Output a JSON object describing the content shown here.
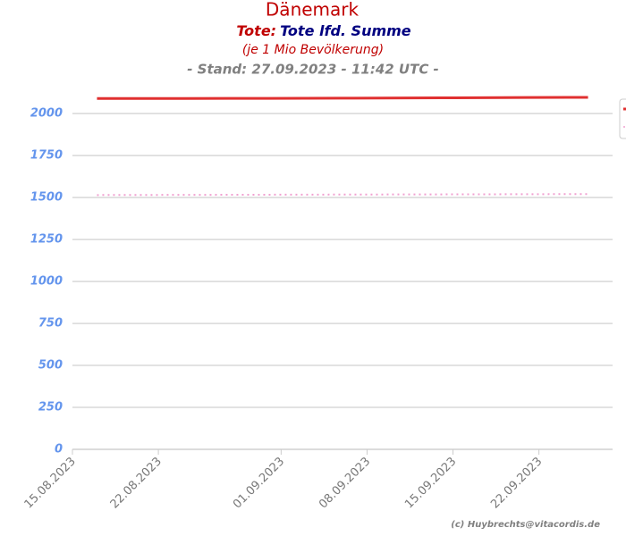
{
  "chart_data": {
    "type": "line",
    "title": "Dänemark",
    "subtitle_prefix": "Tote:",
    "subtitle": "Tote lfd. Summe",
    "unit_note": "(je 1 Mio Bevölkerung)",
    "stand": "- Stand: 27.09.2023 - 11:42 UTC -",
    "credit": "(c) Huybrechts@vitacordis.de",
    "x": [
      "2023-08-17",
      "2023-08-24",
      "2023-08-31",
      "2023-09-07",
      "2023-09-14",
      "2023-09-21",
      "2023-09-26"
    ],
    "series": [
      {
        "color": "#e03030",
        "style": "solid",
        "values": [
          2090,
          2090,
          2091,
          2092,
          2094,
          2096,
          2097
        ]
      },
      {
        "color": "#f0a0d0",
        "style": "dotted",
        "values": [
          1515,
          1516,
          1517,
          1518,
          1519,
          1520,
          1521
        ]
      }
    ],
    "xlim": [
      "2023-08-15",
      "2023-09-28"
    ],
    "xticks": [
      {
        "value": "2023-08-15",
        "label": "15.08.2023"
      },
      {
        "value": "2023-08-22",
        "label": "22.08.2023"
      },
      {
        "value": "2023-09-01",
        "label": "01.09.2023"
      },
      {
        "value": "2023-09-08",
        "label": "08.09.2023"
      },
      {
        "value": "2023-09-15",
        "label": "15.09.2023"
      },
      {
        "value": "2023-09-22",
        "label": "22.09.2023"
      }
    ],
    "ylim": [
      0,
      2150
    ],
    "yticks": [
      0,
      250,
      500,
      750,
      1000,
      1250,
      1500,
      1750,
      2000
    ],
    "grid": true
  }
}
